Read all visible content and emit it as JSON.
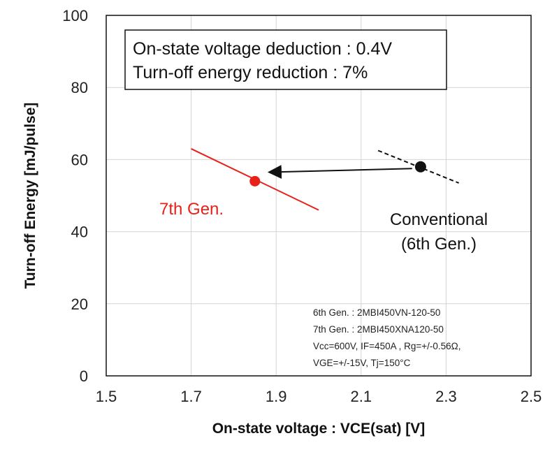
{
  "chart_data": {
    "type": "scatter",
    "xlabel": "On-state voltage : VCE(sat) [V]",
    "ylabel": "Turn-off Energy [mJ/pulse]",
    "xlim": [
      1.5,
      2.5
    ],
    "ylim": [
      0,
      100
    ],
    "xticks": [
      1.5,
      1.7,
      1.9,
      2.1,
      2.3,
      2.5
    ],
    "xtick_labels": [
      "1.5",
      "1.7",
      "1.9",
      "2.1",
      "2.3",
      "2.5"
    ],
    "yticks": [
      0,
      20,
      40,
      60,
      80,
      100
    ],
    "ytick_labels": [
      "0",
      "20",
      "40",
      "60",
      "80",
      "100"
    ],
    "grid": "vertical and horizontal gridlines",
    "series": [
      {
        "name": "7th Gen.",
        "color": "#e8201a",
        "line_style": "solid",
        "trend_line": [
          [
            1.7,
            63
          ],
          [
            2.0,
            46
          ]
        ],
        "point": [
          1.85,
          54
        ]
      },
      {
        "name": "Conventional (6th Gen.)",
        "color": "#111111",
        "line_style": "dashed",
        "trend_line": [
          [
            2.14,
            62.5
          ],
          [
            2.33,
            53.5
          ]
        ],
        "point": [
          2.24,
          58
        ]
      }
    ],
    "arrow": {
      "from": [
        2.22,
        57.5
      ],
      "to": [
        1.87,
        56.5
      ]
    },
    "annotations": {
      "box_lines": [
        "On-state voltage deduction : 0.4V",
        "Turn-off energy reduction : 7%"
      ],
      "label_7th": "7th Gen.",
      "label_conv_1": "Conventional",
      "label_conv_2": "(6th Gen.)",
      "conditions": [
        "6th Gen. : 2MBI450VN-120-50",
        "7th Gen. : 2MBI450XNA120-50",
        "Vcc=600V, IF=450A , Rg=+/-0.56Ω,",
        "VGE=+/-15V, Tj=150°C"
      ]
    }
  }
}
